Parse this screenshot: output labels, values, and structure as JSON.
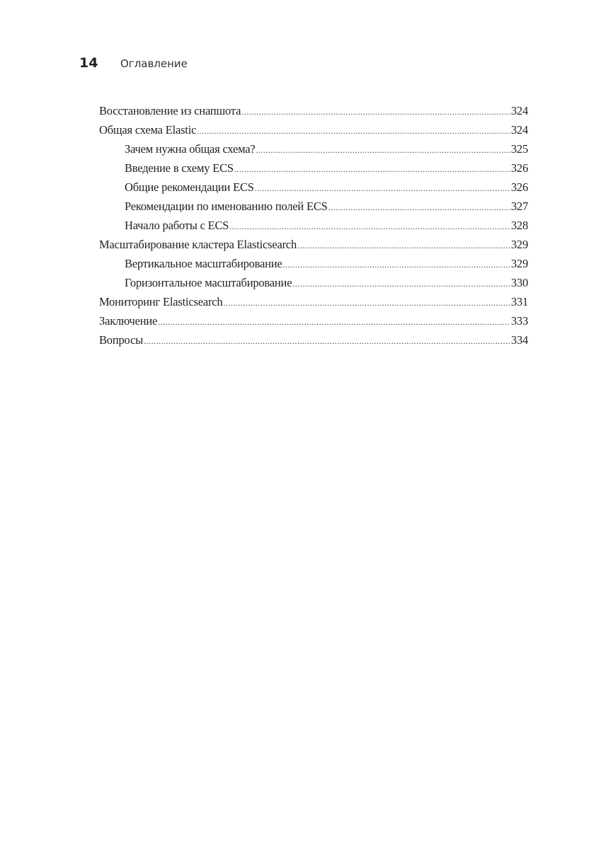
{
  "header": {
    "page_number": "14",
    "title": "Оглавление"
  },
  "toc": [
    {
      "title": "Восстановление из снапшота",
      "page": "324",
      "level": 1
    },
    {
      "title": "Общая схема Elastic",
      "page": "324",
      "level": 1
    },
    {
      "title": "Зачем нужна общая схема?",
      "page": "325",
      "level": 2
    },
    {
      "title": "Введение в схему ECS",
      "page": "326",
      "level": 2
    },
    {
      "title": "Общие рекомендации ECS",
      "page": "326",
      "level": 2
    },
    {
      "title": "Рекомендации по именованию полей ECS",
      "page": "327",
      "level": 2
    },
    {
      "title": "Начало работы с ECS",
      "page": "328",
      "level": 2
    },
    {
      "title": "Масштабирование кластера Elasticsearch",
      "page": "329",
      "level": 1
    },
    {
      "title": "Вертикальное масштабирование",
      "page": "329",
      "level": 2
    },
    {
      "title": "Горизонтальное масштабирование",
      "page": "330",
      "level": 2
    },
    {
      "title": "Мониторинг Elasticsearch",
      "page": "331",
      "level": 1
    },
    {
      "title": "Заключение",
      "page": "333",
      "level": 1
    },
    {
      "title": "Вопросы",
      "page": "334",
      "level": 1
    }
  ]
}
